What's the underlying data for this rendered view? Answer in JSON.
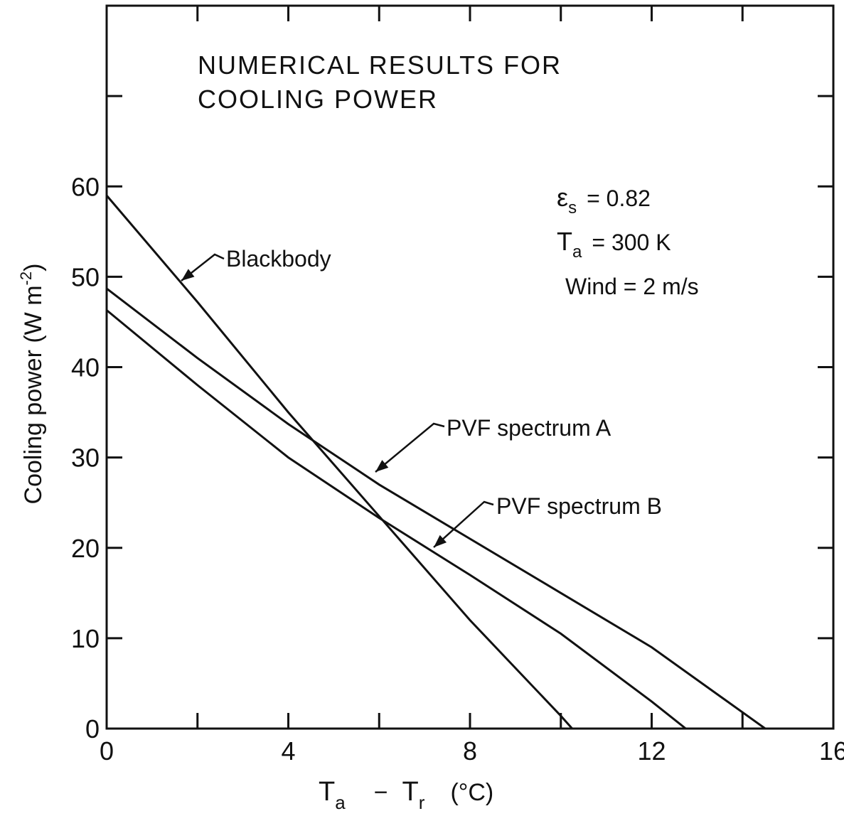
{
  "chart_data": {
    "type": "line",
    "title": [
      "NUMERICAL RESULTS FOR",
      "COOLING POWER"
    ],
    "xlabel": "",
    "ylabel": "Cooling power (W m^-2)",
    "xlim": [
      0,
      16
    ],
    "ylim": [
      0,
      80
    ],
    "xticks": [
      0,
      4,
      8,
      12,
      16
    ],
    "yticks": [
      0,
      10,
      20,
      30,
      40,
      50,
      60
    ],
    "x_tick_labels": [
      "0",
      "4",
      "8",
      "12",
      "16"
    ],
    "y_tick_labels": [
      "0",
      "10",
      "20",
      "30",
      "40",
      "50",
      "60"
    ],
    "x_axis_label": {
      "T1": "T",
      "sub1": "a",
      "minus": "−",
      "T2": "T",
      "sub2": "r",
      "unit": "(°C)"
    },
    "y_axis_label": {
      "main": "Cooling  power (W m",
      "sup": "-2",
      "close": ")"
    },
    "parameters": [
      {
        "symbol": "ε",
        "sub": "s",
        "text": "= 0.82"
      },
      {
        "symbol": "T",
        "sub": "a",
        "text": "= 300 K"
      },
      {
        "symbol": "",
        "sub": "",
        "text": "Wind = 2 m/s"
      }
    ],
    "grid": false,
    "legend": "none",
    "series": [
      {
        "name": "Blackbody",
        "x": [
          0,
          2,
          4,
          6,
          8,
          10,
          10.25
        ],
        "y": [
          59.0,
          47.2,
          35.0,
          23.5,
          12.0,
          1.4,
          0
        ]
      },
      {
        "name": "PVF spectrum A",
        "x": [
          0,
          2,
          4,
          6,
          8,
          10,
          12,
          14.5
        ],
        "y": [
          48.7,
          41.0,
          33.7,
          27.0,
          21.0,
          15.0,
          9.0,
          0
        ]
      },
      {
        "name": "PVF spectrum B",
        "x": [
          0,
          2,
          4,
          6,
          8,
          10,
          12,
          12.75
        ],
        "y": [
          46.3,
          38.0,
          30.0,
          23.3,
          17.0,
          10.5,
          3.0,
          0
        ]
      }
    ]
  }
}
